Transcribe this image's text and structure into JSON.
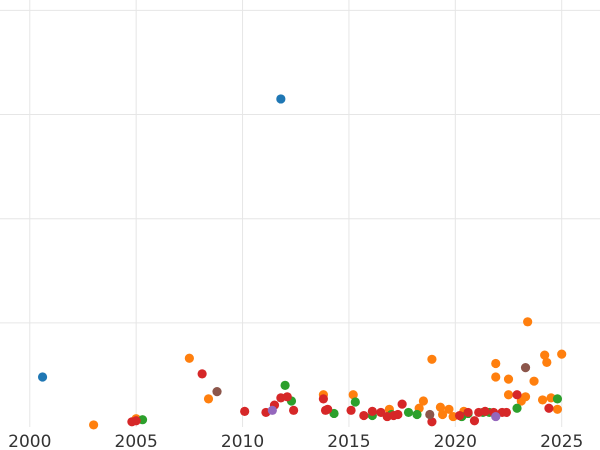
{
  "chart_data": {
    "type": "scatter",
    "title": "",
    "xlabel": "",
    "ylabel": "",
    "xlim": [
      1998.6,
      2026.8
    ],
    "ylim": [
      0,
      4.1
    ],
    "x_ticks": [
      2000,
      2005,
      2010,
      2015,
      2020,
      2025
    ],
    "x_tick_labels": [
      "2000",
      "2005",
      "2010",
      "2015",
      "2020",
      "2025"
    ],
    "y_grid": [
      1,
      2,
      3,
      4
    ],
    "grid": true,
    "legend": "none",
    "series": [
      {
        "color": "#1f77b4",
        "points": [
          [
            2000.6,
            0.48
          ],
          [
            2011.8,
            3.15
          ]
        ]
      },
      {
        "color": "#ff7f0e",
        "points": [
          [
            2003.0,
            0.02
          ],
          [
            2005.0,
            0.08
          ],
          [
            2007.5,
            0.66
          ],
          [
            2008.4,
            0.27
          ],
          [
            2013.8,
            0.31
          ],
          [
            2015.2,
            0.31
          ],
          [
            2016.9,
            0.17
          ],
          [
            2018.3,
            0.18
          ],
          [
            2018.5,
            0.25
          ],
          [
            2018.9,
            0.65
          ],
          [
            2019.3,
            0.19
          ],
          [
            2019.4,
            0.12
          ],
          [
            2019.7,
            0.17
          ],
          [
            2019.9,
            0.1
          ],
          [
            2020.4,
            0.15
          ],
          [
            2021.9,
            0.61
          ],
          [
            2021.9,
            0.48
          ],
          [
            2022.5,
            0.46
          ],
          [
            2022.5,
            0.31
          ],
          [
            2023.1,
            0.25
          ],
          [
            2023.3,
            0.29
          ],
          [
            2023.4,
            1.01
          ],
          [
            2023.7,
            0.44
          ],
          [
            2024.1,
            0.26
          ],
          [
            2024.2,
            0.69
          ],
          [
            2024.3,
            0.62
          ],
          [
            2024.5,
            0.28
          ],
          [
            2024.8,
            0.17
          ],
          [
            2025.0,
            0.7
          ]
        ]
      },
      {
        "color": "#2ca02c",
        "points": [
          [
            2005.3,
            0.07
          ],
          [
            2012.0,
            0.4
          ],
          [
            2012.3,
            0.25
          ],
          [
            2014.3,
            0.13
          ],
          [
            2015.3,
            0.24
          ],
          [
            2016.1,
            0.11
          ],
          [
            2017.0,
            0.12
          ],
          [
            2017.8,
            0.14
          ],
          [
            2018.2,
            0.12
          ],
          [
            2020.3,
            0.1
          ],
          [
            2020.6,
            0.13
          ],
          [
            2021.3,
            0.14
          ],
          [
            2021.6,
            0.14
          ],
          [
            2022.9,
            0.18
          ],
          [
            2024.8,
            0.27
          ]
        ]
      },
      {
        "color": "#d62728",
        "points": [
          [
            2004.8,
            0.05
          ],
          [
            2005.0,
            0.06
          ],
          [
            2008.1,
            0.51
          ],
          [
            2010.1,
            0.15
          ],
          [
            2011.1,
            0.14
          ],
          [
            2011.5,
            0.21
          ],
          [
            2011.8,
            0.28
          ],
          [
            2012.1,
            0.29
          ],
          [
            2012.4,
            0.16
          ],
          [
            2013.8,
            0.27
          ],
          [
            2013.9,
            0.16
          ],
          [
            2014.0,
            0.17
          ],
          [
            2015.1,
            0.16
          ],
          [
            2015.7,
            0.11
          ],
          [
            2016.1,
            0.15
          ],
          [
            2016.5,
            0.14
          ],
          [
            2016.8,
            0.1
          ],
          [
            2017.1,
            0.11
          ],
          [
            2017.3,
            0.12
          ],
          [
            2017.5,
            0.22
          ],
          [
            2018.9,
            0.05
          ],
          [
            2020.2,
            0.11
          ],
          [
            2020.6,
            0.14
          ],
          [
            2020.9,
            0.06
          ],
          [
            2021.1,
            0.14
          ],
          [
            2021.4,
            0.15
          ],
          [
            2021.8,
            0.14
          ],
          [
            2022.2,
            0.14
          ],
          [
            2022.4,
            0.14
          ],
          [
            2022.9,
            0.31
          ],
          [
            2024.4,
            0.18
          ]
        ]
      },
      {
        "color": "#9467bd",
        "points": [
          [
            2011.4,
            0.16
          ],
          [
            2021.9,
            0.1
          ]
        ]
      },
      {
        "color": "#8c564b",
        "points": [
          [
            2008.8,
            0.34
          ],
          [
            2018.8,
            0.12
          ],
          [
            2023.3,
            0.57
          ]
        ]
      }
    ]
  }
}
